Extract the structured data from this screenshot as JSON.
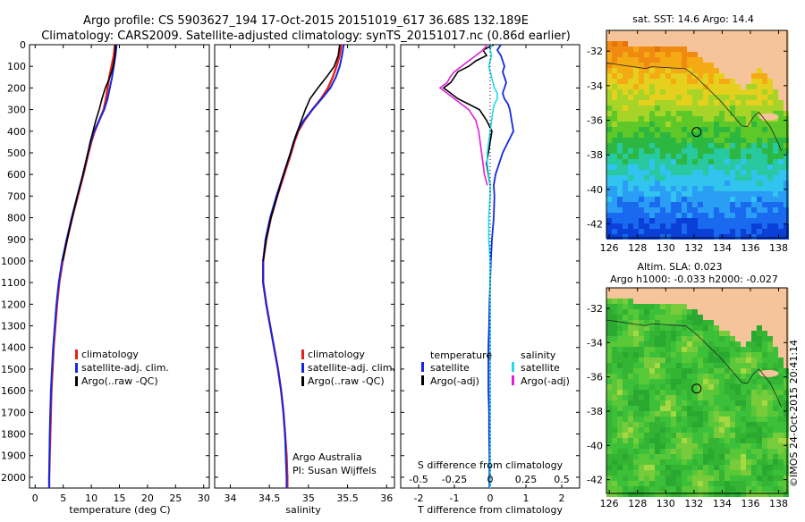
{
  "header": {
    "line1": "Argo profile: CS 5903627_194 17-Oct-2015 20151019_617 36.68S 132.189E",
    "line2": "Climatology: CARS2009. Satellite-adjusted climatology: synTS_20151017.nc (0.86d earlier)"
  },
  "colors": {
    "climatology": "#e8201a",
    "satellite": "#1428e0",
    "argo": "#000000",
    "sat_salinity": "#22d8ee",
    "argo_salinity": "#e01ed8",
    "land": "#f6c49a"
  },
  "chart_data": [
    {
      "type": "line",
      "title": "",
      "xlabel": "temperature (deg C)",
      "ylabel": "",
      "xlim": [
        -1,
        31
      ],
      "ylim": [
        2050,
        0
      ],
      "xticks": [
        "0",
        "5",
        "10",
        "15",
        "20",
        "25",
        "30"
      ],
      "yticks": [
        "0",
        "100",
        "200",
        "300",
        "400",
        "500",
        "600",
        "700",
        "800",
        "900",
        "1000",
        "1100",
        "1200",
        "1300",
        "1400",
        "1500",
        "1600",
        "1700",
        "1800",
        "1900",
        "2000"
      ],
      "legend": [
        "climatology",
        "satellite-adj. clim.",
        "Argo(..raw -QC)"
      ],
      "depth": [
        0,
        50,
        100,
        150,
        200,
        250,
        300,
        350,
        400,
        450,
        500,
        600,
        700,
        800,
        900,
        1000,
        1100,
        1200,
        1300,
        1400,
        1500,
        1600,
        1700,
        1800,
        1900,
        2000,
        2050
      ],
      "series": [
        {
          "name": "climatology",
          "values": [
            14.2,
            14.0,
            13.6,
            13.2,
            12.9,
            12.6,
            12.2,
            11.4,
            10.6,
            10.0,
            9.5,
            8.6,
            7.6,
            6.6,
            5.7,
            4.9,
            4.3,
            3.9,
            3.6,
            3.3,
            3.1,
            2.9,
            2.8,
            2.7,
            2.6,
            2.5,
            2.5
          ]
        },
        {
          "name": "satellite-adj. clim.",
          "values": [
            14.5,
            14.3,
            14.0,
            13.7,
            13.3,
            12.9,
            12.3,
            11.4,
            10.5,
            9.9,
            9.4,
            8.5,
            7.5,
            6.5,
            5.6,
            4.8,
            4.2,
            3.8,
            3.5,
            3.2,
            3.0,
            2.8,
            2.7,
            2.6,
            2.55,
            2.5,
            2.5
          ]
        },
        {
          "name": "Argo(..raw -QC)",
          "values": [
            14.3,
            14.2,
            13.9,
            13.3,
            12.5,
            11.9,
            11.4,
            10.8,
            10.3,
            9.8,
            9.4,
            8.5,
            7.5,
            6.6,
            5.7,
            4.9
          ]
        }
      ]
    },
    {
      "type": "line",
      "xlabel": "salinity",
      "xlim": [
        33.8,
        36.1
      ],
      "ylim": [
        2050,
        0
      ],
      "xticks": [
        "34",
        "34.5",
        "35",
        "35.5",
        "36"
      ],
      "legend": [
        "climatology",
        "satellite-adj. clim.",
        "Argo(..raw -QC)"
      ],
      "annotation": [
        "Argo Australia",
        "PI: Susan Wijffels"
      ],
      "depth": [
        0,
        50,
        100,
        150,
        200,
        250,
        300,
        350,
        400,
        450,
        500,
        600,
        700,
        800,
        900,
        1000,
        1100,
        1200,
        1300,
        1400,
        1500,
        1600,
        1700,
        1800,
        1900,
        2000,
        2050
      ],
      "series": [
        {
          "name": "climatology",
          "values": [
            35.42,
            35.4,
            35.36,
            35.31,
            35.25,
            35.16,
            35.05,
            34.95,
            34.87,
            34.82,
            34.78,
            34.69,
            34.6,
            34.52,
            34.46,
            34.42,
            34.42,
            34.46,
            34.51,
            34.56,
            34.61,
            34.65,
            34.68,
            34.7,
            34.72,
            34.73,
            34.73
          ]
        },
        {
          "name": "satellite-adj. clim.",
          "values": [
            35.45,
            35.43,
            35.4,
            35.35,
            35.28,
            35.17,
            35.05,
            34.94,
            34.86,
            34.81,
            34.77,
            34.68,
            34.59,
            34.51,
            34.45,
            34.42,
            34.42,
            34.46,
            34.51,
            34.56,
            34.61,
            34.65,
            34.68,
            34.7,
            34.71,
            34.72,
            34.72
          ]
        },
        {
          "name": "Argo(..raw -QC)",
          "values": [
            35.4,
            35.38,
            35.33,
            35.23,
            35.12,
            35.02,
            34.96,
            34.91,
            34.86,
            34.81,
            34.77,
            34.68,
            34.6,
            34.52,
            34.46,
            34.42
          ]
        }
      ]
    },
    {
      "type": "line",
      "xlabel": "T difference from climatology",
      "xlabel_top": "S difference from climatology",
      "xlim": [
        -2.5,
        2.5
      ],
      "ylim": [
        2050,
        0
      ],
      "xticks_bottom": [
        "-2",
        "-1",
        "0",
        "1",
        "2"
      ],
      "xticks_top": [
        "-0.5",
        "-0.25",
        "0",
        "0.25",
        "0.5"
      ],
      "legend_groups": [
        {
          "title": "temperature",
          "items": [
            "satellite",
            "Argo(-adj)"
          ]
        },
        {
          "title": "salinity",
          "items": [
            "satellite",
            "Argo(-adj)"
          ]
        }
      ],
      "depth": [
        0,
        25,
        50,
        75,
        100,
        125,
        150,
        175,
        200,
        225,
        250,
        275,
        300,
        350,
        400,
        450,
        500,
        550,
        600,
        650,
        700,
        800,
        900,
        1000,
        1100,
        1200,
        1300,
        1400,
        1500,
        1600,
        1700,
        1800,
        1900,
        2000,
        2050
      ],
      "series": [
        {
          "name": "temperature satellite",
          "values": [
            0.3,
            0.2,
            0.3,
            0.35,
            0.4,
            0.35,
            0.4,
            0.45,
            0.4,
            0.35,
            0.4,
            0.5,
            0.55,
            0.6,
            0.65,
            0.5,
            0.35,
            0.25,
            0.15,
            0.1,
            0.12,
            0.1,
            0.05,
            0.02,
            0.0,
            -0.02,
            -0.03,
            -0.05,
            -0.05,
            -0.05,
            -0.03,
            -0.03,
            -0.02,
            -0.02,
            -0.02
          ]
        },
        {
          "name": "temperature Argo(-adj)",
          "values": [
            0.1,
            -0.2,
            -0.1,
            -0.4,
            -0.6,
            -0.9,
            -1.0,
            -1.1,
            -1.3,
            -1.1,
            -0.9,
            -0.6,
            -0.3,
            -0.1,
            0.05,
            0.0,
            -0.05,
            -0.1,
            -0.05,
            0.0
          ]
        },
        {
          "name": "salinity satellite",
          "values": [
            0.01,
            0.0,
            0.01,
            0.0,
            -0.01,
            0.0,
            0.01,
            0.02,
            0.03,
            0.05,
            0.05,
            0.03,
            0.02,
            0.01,
            0.0,
            -0.01,
            -0.02,
            -0.02,
            -0.01,
            0.0,
            0.0,
            -0.01,
            -0.01,
            0.0,
            0.0,
            0.0,
            0.0,
            0.0,
            0.0,
            0.0,
            0.0,
            0.0,
            0.0,
            0.0,
            0.0
          ]
        },
        {
          "name": "salinity Argo(-adj)",
          "values": [
            -0.02,
            -0.05,
            -0.1,
            -0.15,
            -0.2,
            -0.25,
            -0.28,
            -0.3,
            -0.35,
            -0.3,
            -0.25,
            -0.2,
            -0.15,
            -0.1,
            -0.08,
            -0.07,
            -0.06,
            -0.05,
            -0.04,
            -0.02
          ]
        }
      ]
    },
    {
      "type": "heatmap",
      "title": "sat. SST: 14.6 Argo: 14.4",
      "lon_ticks": [
        "126",
        "128",
        "130",
        "132",
        "134",
        "136",
        "138"
      ],
      "lat_ticks": [
        "-32",
        "-34",
        "-36",
        "-38",
        "-40",
        "-42"
      ],
      "lon_range": [
        125.8,
        138.6
      ],
      "lat_range": [
        -42.8,
        -30.8
      ],
      "argo_position": {
        "lon": 132.189,
        "lat": -36.68
      }
    },
    {
      "type": "heatmap",
      "title_lines": [
        "Altim. SLA: 0.023",
        "Argo h1000: -0.033 h2000: -0.027"
      ],
      "lon_ticks": [
        "126",
        "128",
        "130",
        "132",
        "134",
        "136",
        "138"
      ],
      "lat_ticks": [
        "-32",
        "-34",
        "-36",
        "-38",
        "-40",
        "-42"
      ],
      "lon_range": [
        125.8,
        138.6
      ],
      "lat_range": [
        -42.8,
        -30.8
      ],
      "argo_position": {
        "lon": 132.189,
        "lat": -36.68
      }
    }
  ],
  "credit": "©IMOS 24-Oct-2015 20:41:14"
}
